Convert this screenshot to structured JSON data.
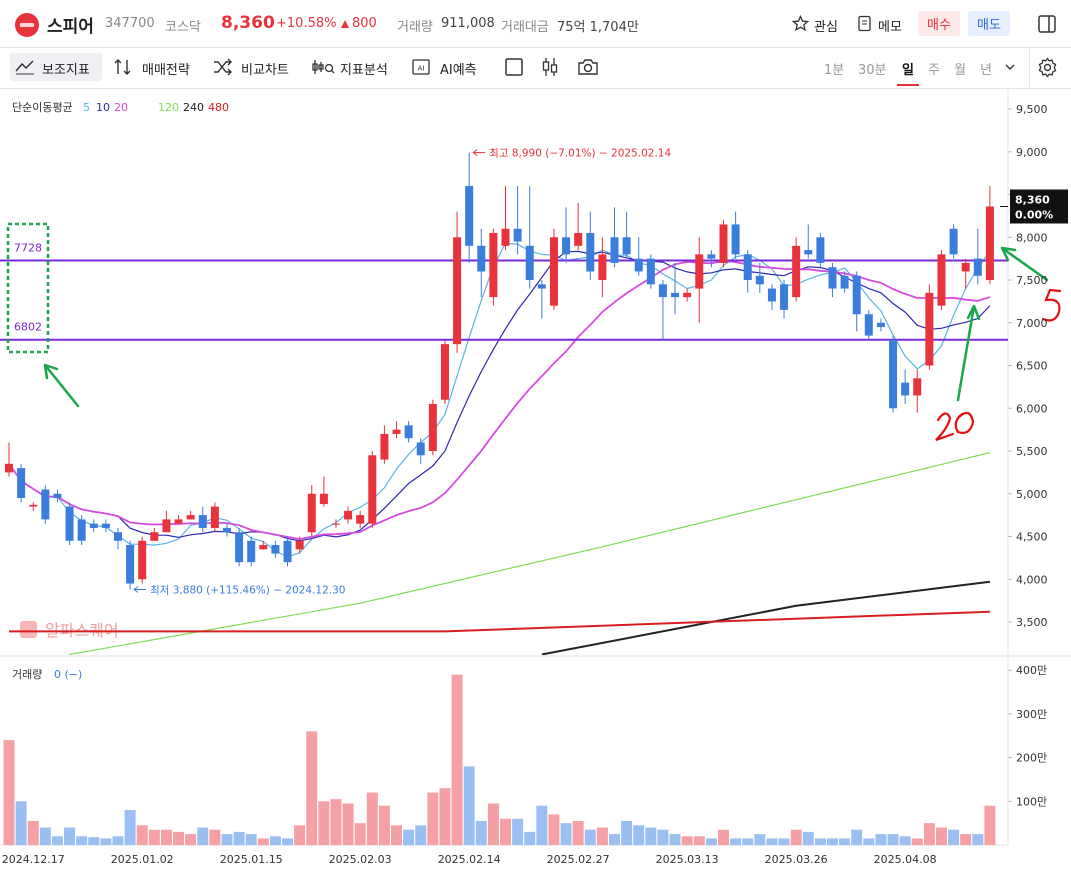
{
  "header": {
    "name": "스피어",
    "code": "347700",
    "market": "코스닥",
    "price": "8,360",
    "change_pct": "+10.58%",
    "change": "800",
    "volume_label": "거래량",
    "volume": "911,008",
    "amount_label": "거래대금",
    "amount": "75억 1,704만",
    "watch": "관심",
    "memo": "메모",
    "buy": "매수",
    "sell": "매도"
  },
  "toolbar": {
    "items": [
      "보조지표",
      "매매전략",
      "비교차트",
      "지표분석",
      "AI예측"
    ],
    "periods": [
      "1분",
      "30분",
      "일",
      "주",
      "월",
      "년"
    ],
    "active_period": "일"
  },
  "chart_data": [
    {
      "type": "candlestick",
      "legend_title": "단순이동평균",
      "categories": [
        null,
        null,
        "2024.12.17",
        null,
        null,
        null,
        null,
        null,
        null,
        null,
        null,
        "2025.01.02",
        null,
        null,
        null,
        null,
        null,
        null,
        null,
        null,
        "2025.01.15",
        null,
        null,
        null,
        null,
        null,
        null,
        null,
        null,
        "2025.02.03",
        null,
        null,
        null,
        null,
        null,
        null,
        null,
        null,
        "2025.02.14",
        null,
        null,
        null,
        null,
        null,
        null,
        null,
        null,
        "2025.02.27",
        null,
        null,
        null,
        null,
        null,
        null,
        null,
        null,
        "2025.03.13",
        null,
        null,
        null,
        null,
        null,
        null,
        null,
        null,
        "2025.03.26",
        null,
        null,
        null,
        null,
        null,
        null,
        null,
        null,
        "2025.04.08",
        null,
        null,
        null,
        null,
        null,
        null,
        null
      ],
      "open": [
        5250,
        5300,
        4850,
        5050,
        5000,
        4850,
        4700,
        4650,
        4650,
        4550,
        4400,
        4000,
        4450,
        4550,
        4650,
        4700,
        4750,
        4600,
        4600,
        4550,
        4450,
        4350,
        4400,
        4450,
        4350,
        4550,
        4880,
        4650,
        4700,
        4650,
        4650,
        5400,
        5700,
        5800,
        5600,
        5500,
        6100,
        6750,
        8600,
        7900,
        7300,
        7900,
        8100,
        7900,
        7450,
        7200,
        8000,
        7900,
        8050,
        7500,
        8000,
        8000,
        7750,
        7750,
        7450,
        7350,
        7300,
        7400,
        7800,
        7700,
        8150,
        7800,
        7550,
        7400,
        7450,
        7300,
        7850,
        8000,
        7650,
        7550,
        7550,
        7100,
        7000,
        6800,
        6300,
        6150,
        6500,
        7200,
        8100,
        7600,
        7750,
        7500
      ],
      "high": [
        5600,
        5350,
        4900,
        5100,
        5050,
        4900,
        4750,
        4700,
        4700,
        4600,
        4450,
        4500,
        4600,
        4800,
        4750,
        4800,
        4850,
        4900,
        4650,
        4600,
        4500,
        4450,
        4450,
        4500,
        4500,
        5100,
        5200,
        4700,
        4850,
        4800,
        5500,
        5800,
        5850,
        5850,
        5650,
        6100,
        6800,
        8300,
        8990,
        8100,
        8100,
        8600,
        8600,
        8600,
        7500,
        8100,
        8350,
        8400,
        8300,
        8000,
        8350,
        8300,
        8000,
        7800,
        7500,
        7700,
        7400,
        8000,
        7850,
        8200,
        8300,
        7850,
        7700,
        7450,
        7500,
        8000,
        8150,
        8050,
        7700,
        7600,
        7600,
        7150,
        7050,
        6850,
        6450,
        6450,
        7450,
        7850,
        8150,
        7750,
        8100,
        8600
      ],
      "low": [
        5200,
        4900,
        4800,
        4650,
        4900,
        4400,
        4400,
        4550,
        4550,
        4350,
        3880,
        3950,
        4500,
        4550,
        4650,
        4700,
        4550,
        4550,
        4500,
        4150,
        4150,
        4350,
        4250,
        4150,
        4300,
        4500,
        4850,
        4600,
        4650,
        4600,
        4600,
        5350,
        5650,
        5600,
        5350,
        5450,
        6050,
        6650,
        7700,
        7300,
        7200,
        7850,
        7800,
        7400,
        7050,
        7150,
        7700,
        7850,
        7500,
        7300,
        7650,
        7750,
        7550,
        7400,
        6800,
        7100,
        7250,
        7000,
        7650,
        7650,
        7750,
        7350,
        7350,
        7150,
        7050,
        7250,
        7750,
        7650,
        7300,
        7350,
        6900,
        6800,
        6900,
        5950,
        6050,
        5950,
        6450,
        7150,
        7750,
        7400,
        7450,
        7450
      ],
      "close": [
        5350,
        4950,
        4870,
        4700,
        4950,
        4450,
        4450,
        4600,
        4600,
        4450,
        3950,
        4450,
        4550,
        4700,
        4700,
        4750,
        4600,
        4850,
        4550,
        4200,
        4200,
        4400,
        4300,
        4200,
        4450,
        5000,
        5000,
        4650,
        4800,
        4750,
        5450,
        5700,
        5750,
        5650,
        5450,
        6050,
        6750,
        8000,
        7900,
        7600,
        8050,
        8100,
        7950,
        7500,
        7400,
        8000,
        7800,
        8050,
        7600,
        7800,
        7700,
        7800,
        7600,
        7450,
        7300,
        7300,
        7350,
        7800,
        7750,
        8150,
        7800,
        7500,
        7450,
        7250,
        7150,
        7900,
        7800,
        7700,
        7400,
        7400,
        7100,
        6850,
        6950,
        6000,
        6150,
        6350,
        7350,
        7800,
        7800,
        7700,
        7550,
        8360
      ],
      "up_color": "#e8323c",
      "down_color": "#3b7ddd",
      "ylim": [
        3114,
        9746
      ],
      "yticks": [
        {
          "value": 9500,
          "label": "9,500"
        },
        {
          "value": 9000,
          "label": "9,000"
        },
        {
          "value": 8500,
          "label": "8,500"
        },
        {
          "value": 8000,
          "label": "8,000"
        },
        {
          "value": 7500,
          "label": "7,500"
        },
        {
          "value": 7000,
          "label": "7,000"
        },
        {
          "value": 6500,
          "label": "6,500"
        },
        {
          "value": 6000,
          "label": "6,000"
        },
        {
          "value": 5500,
          "label": "5,500"
        },
        {
          "value": 5000,
          "label": "5,000"
        },
        {
          "value": 4500,
          "label": "4,500"
        },
        {
          "value": 4000,
          "label": "4,000"
        },
        {
          "value": 3500,
          "label": "3,500"
        }
      ],
      "moving_averages": [
        {
          "name": "5",
          "color": "#5ab4e6"
        },
        {
          "name": "10",
          "color": "#2a2ab0"
        },
        {
          "name": "20",
          "color": "#d64ce0"
        },
        {
          "name": "120",
          "color": "#7fdd55",
          "x": [
            5,
            29,
            49,
            65,
            81
          ],
          "values": [
            3120,
            3720,
            4380,
            4930,
            5480
          ]
        },
        {
          "name": "240",
          "color": "#222222",
          "x": [
            44,
            65,
            81
          ],
          "values": [
            3120,
            3690,
            3970
          ]
        },
        {
          "name": "480",
          "color": "#d62020",
          "x": [
            0,
            36,
            81
          ],
          "values": [
            3390,
            3390,
            3620
          ]
        }
      ],
      "levels": [
        7728,
        6802
      ],
      "level_color": "#7b2ad8",
      "annotations": [
        {
          "text": "최고 8,990 (−7.01%) − 2025.02.14",
          "index": 38,
          "value": 8990,
          "color": "#e8323c"
        },
        {
          "text": "최저 3,880 (+115.46%) − 2024.12.30",
          "index": 10,
          "value": 3880,
          "color": "#3b7ddd"
        }
      ],
      "current": {
        "value": 8360,
        "label": "8,360",
        "change": "0.00%"
      },
      "watermark": "알파스퀘어"
    },
    {
      "type": "bar",
      "title": "거래량",
      "readout": "0 (−)",
      "values": [
        240,
        100,
        55,
        40,
        20,
        40,
        20,
        18,
        15,
        20,
        80,
        45,
        35,
        35,
        30,
        25,
        40,
        35,
        25,
        30,
        25,
        15,
        20,
        15,
        45,
        260,
        100,
        105,
        95,
        50,
        120,
        90,
        45,
        35,
        45,
        120,
        130,
        390,
        180,
        55,
        95,
        60,
        60,
        30,
        90,
        70,
        50,
        55,
        35,
        40,
        25,
        55,
        45,
        40,
        35,
        25,
        20,
        20,
        15,
        35,
        15,
        15,
        25,
        15,
        15,
        35,
        30,
        15,
        15,
        15,
        35,
        15,
        25,
        25,
        20,
        15,
        50,
        40,
        35,
        25,
        25,
        90
      ],
      "up_color": "#f4a0a4",
      "down_color": "#9cbff2",
      "ylim": [
        0,
        428
      ],
      "yticks": [
        {
          "value": 400,
          "label": "400만"
        },
        {
          "value": 300,
          "label": "300만"
        },
        {
          "value": 200,
          "label": "200만"
        },
        {
          "value": 100,
          "label": "100만"
        }
      ]
    }
  ]
}
